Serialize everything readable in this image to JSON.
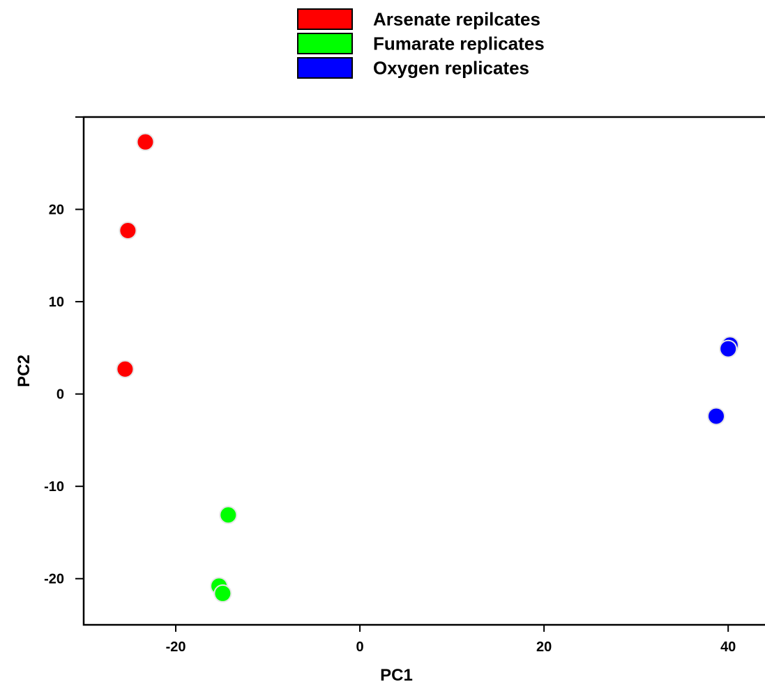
{
  "chart_data": {
    "type": "scatter",
    "xlabel": "PC1",
    "ylabel": "PC2",
    "xlim": [
      -30,
      44
    ],
    "ylim": [
      -25,
      30
    ],
    "xticks": [
      -20,
      0,
      20,
      40
    ],
    "yticks": [
      -20,
      -10,
      0,
      10,
      20
    ],
    "legend_position": "top",
    "series": [
      {
        "name": "Arsenate repilcates",
        "color": "#ff0000",
        "points": [
          [
            -23.3,
            27.3
          ],
          [
            -25.2,
            17.7
          ],
          [
            -25.5,
            2.7
          ]
        ]
      },
      {
        "name": "Fumarate replicates",
        "color": "#00ff00",
        "points": [
          [
            -14.3,
            -13.1
          ],
          [
            -15.3,
            -20.8
          ],
          [
            -14.9,
            -21.6
          ]
        ]
      },
      {
        "name": "Oxygen replicates",
        "color": "#0000ff",
        "points": [
          [
            40.2,
            5.3
          ],
          [
            40.0,
            4.9
          ],
          [
            38.7,
            -2.4
          ]
        ]
      }
    ]
  }
}
